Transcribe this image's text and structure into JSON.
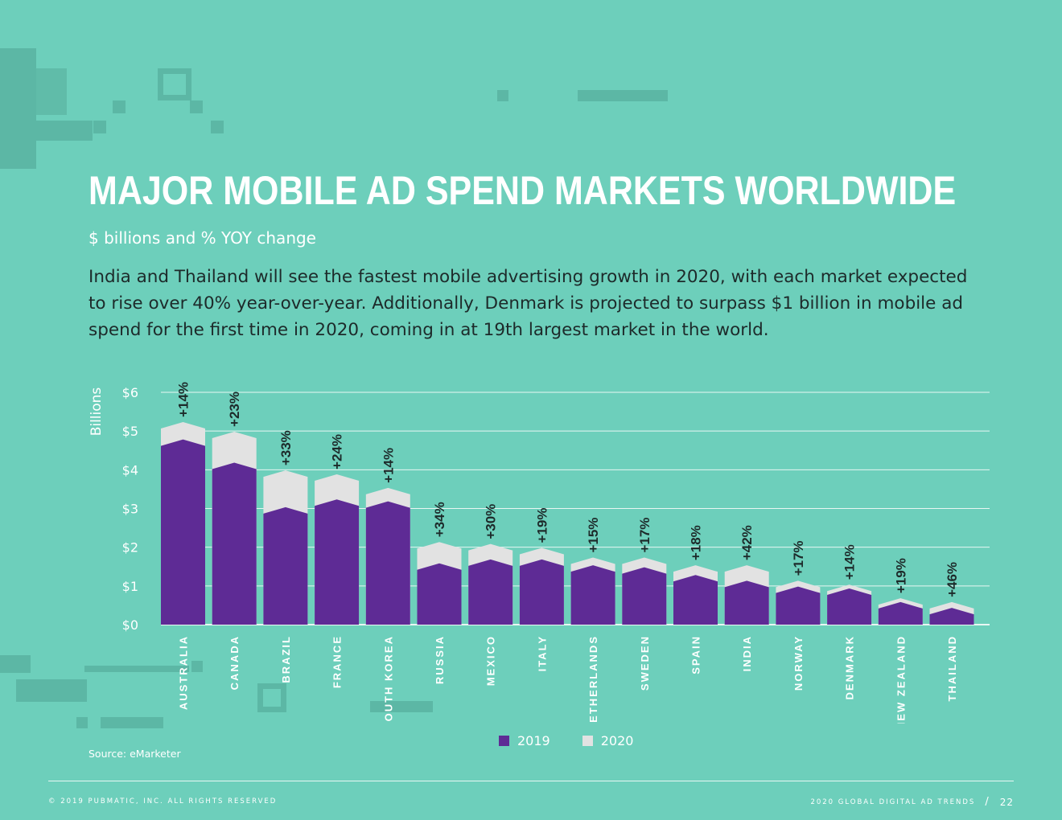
{
  "header": {
    "title": "MAJOR MOBILE AD SPEND MARKETS WORLDWIDE",
    "subtitle": "$ billions and % YOY change",
    "intro": "India and Thailand will see the fastest mobile advertising growth in 2020, with each market expected to rise over 40% year-over-year. Additionally, Denmark is projected to surpass $1 billion in mobile ad spend for the first time in 2020, coming in at 19th largest market in the world."
  },
  "chart_data": {
    "type": "bar",
    "stacked_overlay": true,
    "ylabel": "Billions",
    "ylim": [
      0,
      6
    ],
    "yticks": [
      "$0",
      "$1",
      "$2",
      "$3",
      "$4",
      "$5",
      "$6"
    ],
    "grid": true,
    "categories": [
      "AUSTRALIA",
      "CANADA",
      "BRAZIL",
      "FRANCE",
      "SOUTH KOREA",
      "RUSSIA",
      "MEXICO",
      "ITALY",
      "NETHERLANDS",
      "SWEDEN",
      "SPAIN",
      "INDIA",
      "NORWAY",
      "DENMARK",
      "NEW ZEALAND",
      "THAILAND"
    ],
    "series": [
      {
        "name": "2019",
        "values": [
          4.7,
          4.1,
          2.95,
          3.15,
          3.1,
          1.5,
          1.6,
          1.6,
          1.45,
          1.4,
          1.2,
          1.05,
          0.9,
          0.85,
          0.5,
          0.35
        ]
      },
      {
        "name": "2020",
        "values": [
          5.15,
          4.9,
          3.9,
          3.8,
          3.45,
          2.05,
          2.0,
          1.9,
          1.65,
          1.65,
          1.45,
          1.45,
          1.05,
          0.95,
          0.6,
          0.5
        ]
      }
    ],
    "growth_labels": [
      "+14%",
      "+23%",
      "+33%",
      "+24%",
      "+14%",
      "+34%",
      "+30%",
      "+19%",
      "+15%",
      "+17%",
      "+18%",
      "+42%",
      "+17%",
      "+14%",
      "+19%",
      "+46%"
    ],
    "legend": [
      {
        "label": "2019"
      },
      {
        "label": "2020"
      }
    ],
    "legend_placement": "bottom-center",
    "colors": {
      "y2019": "#5e2b95",
      "y2020": "#e2e2e2",
      "grid": "#e8f7f3",
      "label": "#ffffff",
      "growth": "#1d2a2a"
    }
  },
  "source": "Source: eMarketer",
  "footer": {
    "copyright": "© 2019 PUBMATIC, INC. ALL RIGHTS RESERVED",
    "report": "2020 GLOBAL DIGITAL AD TRENDS",
    "separator": "/",
    "page": "22"
  }
}
